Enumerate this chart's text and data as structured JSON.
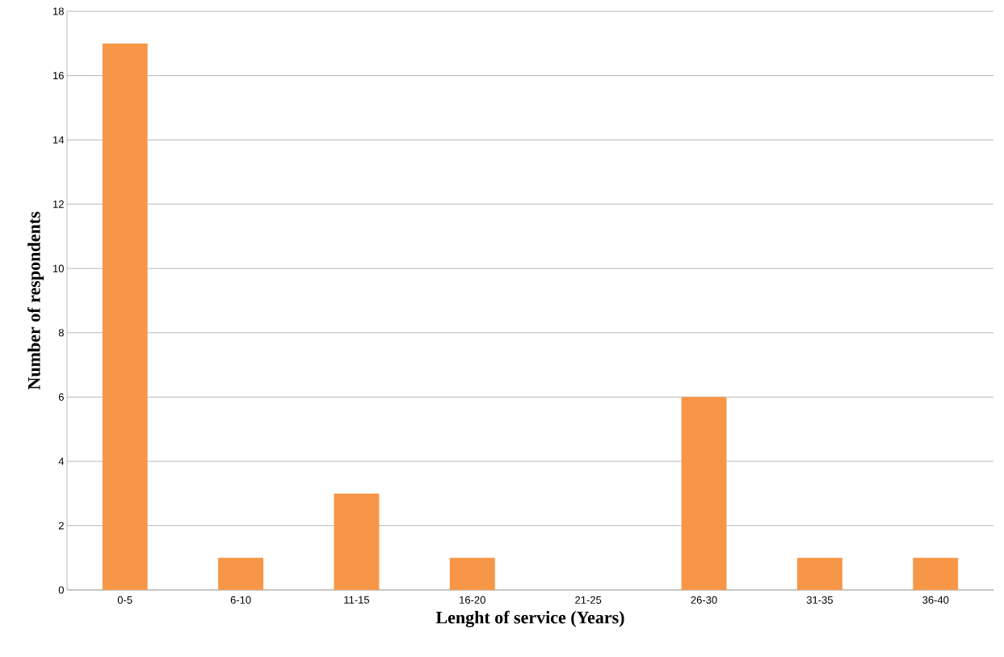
{
  "chart_data": {
    "type": "bar",
    "xlabel": "Lenght of service (Years)",
    "ylabel": "Number of respondents",
    "categories": [
      "0-5",
      "6-10",
      "11-15",
      "16-20",
      "21-25",
      "26-30",
      "31-35",
      "36-40"
    ],
    "values": [
      17,
      1,
      3,
      1,
      0,
      6,
      1,
      1
    ],
    "color": "#f79646",
    "ylim": [
      0,
      18
    ],
    "yticks": [
      0,
      2,
      4,
      6,
      8,
      10,
      12,
      14,
      16,
      18
    ],
    "grid": "y"
  }
}
